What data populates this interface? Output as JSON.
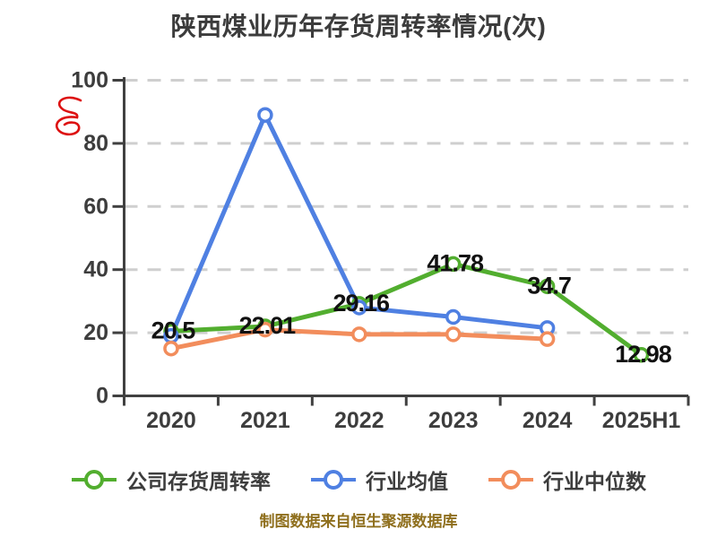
{
  "title": {
    "text": "陕西煤业历年存货周转率情况(次)",
    "color": "#3c3c3c"
  },
  "watermark": {
    "label": "red-scribble",
    "color": "#dd1111"
  },
  "footer": {
    "text": "制图数据来自恒生聚源数据库",
    "color": "#8f6f1d"
  },
  "chart_data": {
    "type": "line",
    "title": "陕西煤业历年存货周转率情况(次)",
    "categories": [
      "2020",
      "2021",
      "2022",
      "2023",
      "2024",
      "2025H1"
    ],
    "series": [
      {
        "name": "公司存货周转率",
        "color": "#52ae2f",
        "values": [
          20.5,
          22.01,
          29.16,
          41.78,
          34.7,
          12.98
        ],
        "data_labels": [
          "20.5",
          "22.01",
          "29.16",
          "41.78",
          "34.7",
          "12.98"
        ]
      },
      {
        "name": "行业均值",
        "color": "#4f80e2",
        "values": [
          19,
          89,
          28,
          25,
          21.5,
          null
        ]
      },
      {
        "name": "行业中位数",
        "color": "#f28d5c",
        "values": [
          15,
          21,
          19.5,
          19.5,
          18,
          null
        ]
      }
    ],
    "ylim": [
      0,
      100
    ],
    "yticks": [
      0,
      20,
      40,
      60,
      80,
      100
    ],
    "xlabel": "",
    "ylabel": "",
    "grid": "horizontal-dashed",
    "legend_position": "bottom",
    "marker": "open-circle",
    "axis_color": "#404040",
    "grid_color": "#cfcfcf",
    "tick_label_color": "#3d3d3d",
    "data_label_color": "#111111"
  }
}
